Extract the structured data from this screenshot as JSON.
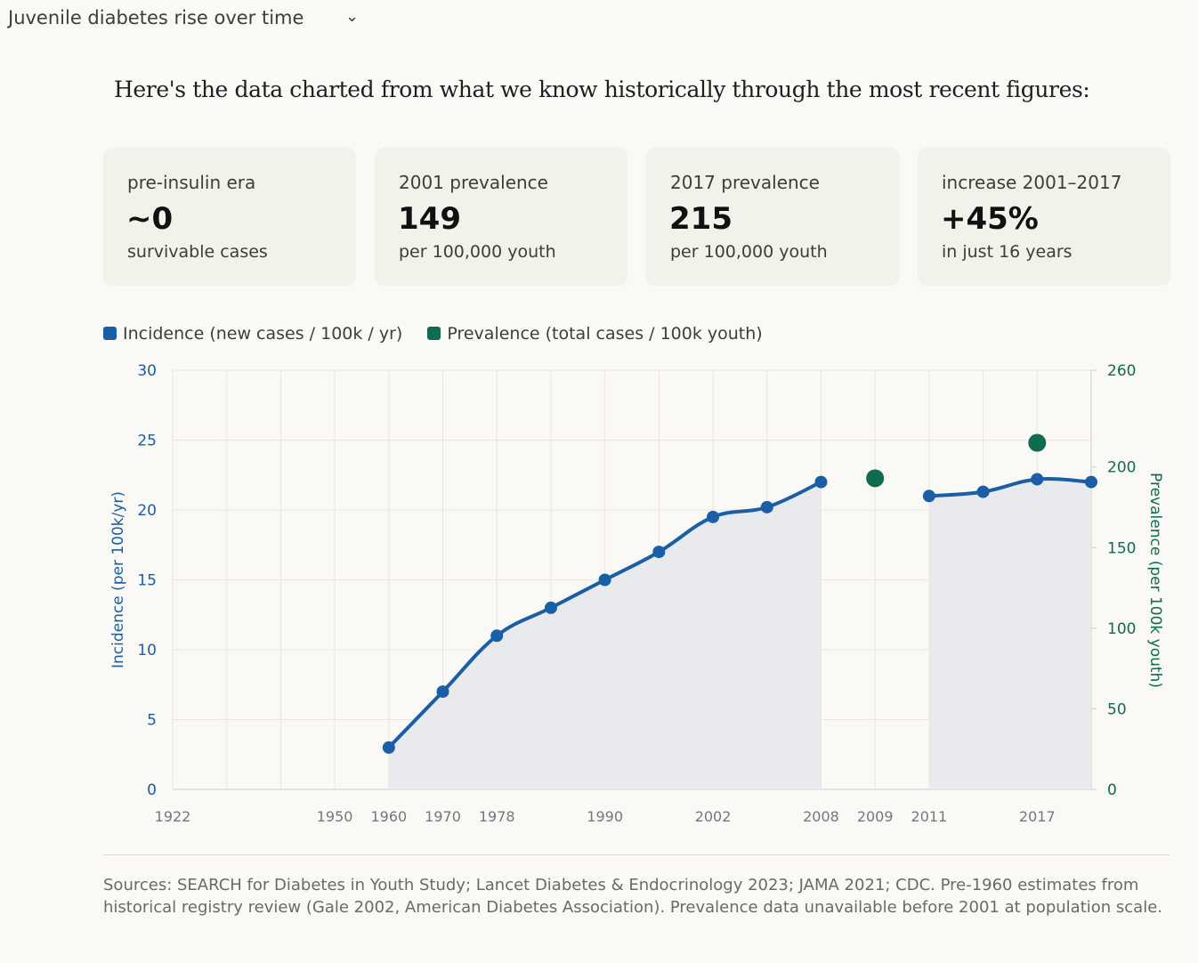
{
  "header": {
    "title": "Juvenile diabetes rise over time",
    "chevron_icon": "chevron-down-icon"
  },
  "intro": "Here's the data charted from what we know historically through the most recent figures:",
  "cards": [
    {
      "label": "pre-insulin era",
      "value": "~0",
      "sub": "survivable cases"
    },
    {
      "label": "2001 prevalence",
      "value": "149",
      "sub": "per 100,000 youth"
    },
    {
      "label": "2017 prevalence",
      "value": "215",
      "sub": "per 100,000 youth"
    },
    {
      "label": "increase 2001–2017",
      "value": "+45%",
      "sub": "in just 16 years"
    }
  ],
  "chart_data": {
    "type": "line",
    "categories": [
      "1922",
      "",
      "",
      "1950",
      "1960",
      "1970",
      "1978",
      "",
      "1990",
      "",
      "2002",
      "",
      "2008",
      "2009",
      "2011",
      "",
      "2017",
      ""
    ],
    "series": [
      {
        "name": "Incidence (new cases / 100k / yr)",
        "axis": "left",
        "color": "#1a5ea8",
        "values": [
          null,
          null,
          null,
          null,
          3,
          7,
          11,
          13,
          15,
          17,
          19.5,
          20.2,
          22,
          null,
          21,
          21.3,
          22.2,
          22
        ]
      },
      {
        "name": "Prevalence (total cases / 100k youth)",
        "axis": "right",
        "color": "#116b50",
        "values": [
          null,
          null,
          null,
          null,
          null,
          null,
          null,
          null,
          null,
          null,
          null,
          null,
          null,
          193,
          null,
          null,
          215,
          null
        ]
      }
    ],
    "ylabel_left": "Incidence (per 100k/yr)",
    "ylabel_right": "Prevalence (per 100k youth)",
    "ylim_left": [
      0,
      30
    ],
    "yticks_left": [
      "0",
      "5",
      "10",
      "15",
      "20",
      "25",
      "30"
    ],
    "ylim_right": [
      0,
      260
    ],
    "yticks_right": [
      "0",
      "50",
      "100",
      "150",
      "200",
      "260"
    ],
    "yticks_right_values": [
      0,
      50,
      100,
      150,
      200,
      260
    ],
    "grid": true,
    "legend": "top-left"
  },
  "sources": "Sources: SEARCH for Diabetes in Youth Study; Lancet Diabetes & Endocrinology 2023; JAMA 2021; CDC. Pre-1960 estimates from historical registry review (Gale 2002, American Diabetes Association). Prevalence data unavailable before 2001 at population scale."
}
